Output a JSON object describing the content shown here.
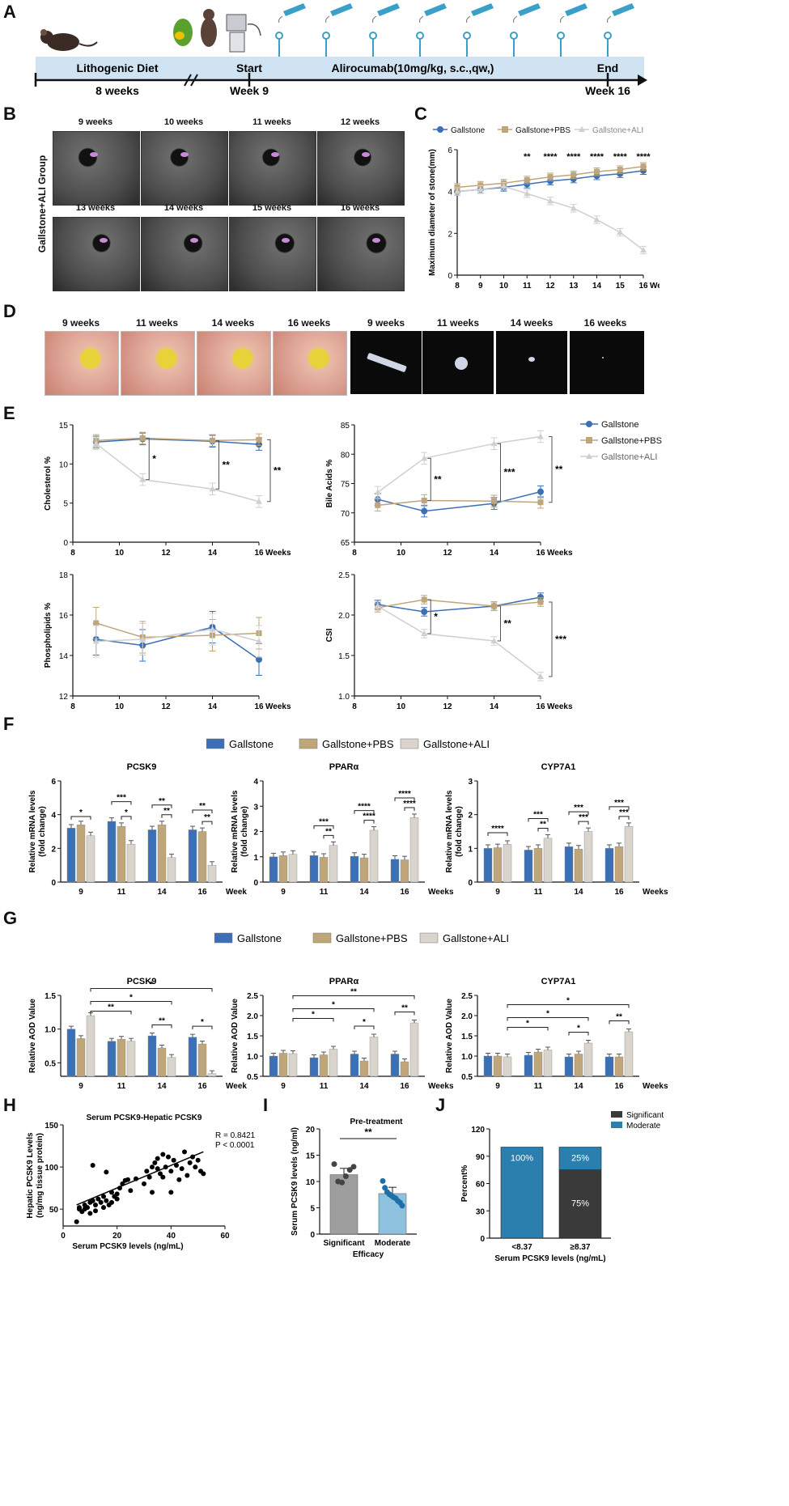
{
  "panel_labels": {
    "a": "A",
    "b": "B",
    "c": "C",
    "d": "D",
    "e": "E",
    "f": "F",
    "g": "G",
    "h": "H",
    "i": "I",
    "j": "J"
  },
  "timeline": {
    "lithogenic": "Lithogenic Diet",
    "duration": "8 weeks",
    "start": "Start",
    "start_week": "Week 9",
    "treatment": "Alirocumab(10mg/kg, s.c.,qw,)",
    "end": "End",
    "end_week": "Week 16"
  },
  "ultrasound": {
    "group_label": "Gallstone+ALI Group",
    "weeks": [
      "9 weeks",
      "10 weeks",
      "11 weeks",
      "12 weeks",
      "13 weeks",
      "14 weeks",
      "15 weeks",
      "16 weeks"
    ]
  },
  "legend3": [
    "Gallstone",
    "Gallstone+PBS",
    "Gallstone+ALI"
  ],
  "colors": {
    "gallstone": "#3b6fb6",
    "pbs": "#bfa67a",
    "ali": "#d9d4cc",
    "ali_line": "#cfcfcf",
    "significant": "#3a3a3a",
    "moderate": "#2a7fae",
    "bar_i_sig": "#9e9e9e",
    "bar_i_mod": "#8ec1de"
  },
  "photos": {
    "gross": [
      "9 weeks",
      "11 weeks",
      "14 weeks",
      "16 weeks"
    ],
    "stones": [
      "9 weeks",
      "11 weeks",
      "14 weeks",
      "16 weeks"
    ]
  },
  "chart_data": [
    {
      "id": "C",
      "type": "line",
      "x": [
        8,
        9,
        10,
        11,
        12,
        13,
        14,
        15,
        16
      ],
      "xlabel": "Weeks",
      "ylabel": "Maximum diameter of stone(mm)",
      "ylim": [
        0,
        6
      ],
      "yticks": [
        "0",
        "2",
        "4",
        "6"
      ],
      "xticks": [
        "8",
        "9",
        "10",
        "11",
        "12",
        "13",
        "14",
        "15",
        "16"
      ],
      "series": [
        {
          "name": "Gallstone",
          "values": [
            4.0,
            4.1,
            4.2,
            4.35,
            4.5,
            4.6,
            4.75,
            4.85,
            5.0
          ]
        },
        {
          "name": "Gallstone+PBS",
          "values": [
            4.2,
            4.3,
            4.4,
            4.55,
            4.7,
            4.8,
            4.95,
            5.05,
            5.2
          ]
        },
        {
          "name": "Gallstone+ALI",
          "values": [
            4.0,
            4.1,
            4.25,
            3.9,
            3.55,
            3.2,
            2.65,
            2.05,
            1.2
          ]
        }
      ],
      "sig": [
        {
          "x": 11,
          "t": "**"
        },
        {
          "x": 12,
          "t": "****"
        },
        {
          "x": 13,
          "t": "****"
        },
        {
          "x": 14,
          "t": "****"
        },
        {
          "x": 15,
          "t": "****"
        },
        {
          "x": 16,
          "t": "****"
        }
      ]
    },
    {
      "id": "E1",
      "type": "line",
      "x": [
        9,
        11,
        14,
        16
      ],
      "xlabel": "Weeks",
      "ylabel": "Cholesterol %",
      "ylim": [
        0,
        15
      ],
      "yticks": [
        "0",
        "5",
        "10",
        "15"
      ],
      "xticks": [
        "8",
        "10",
        "12",
        "14",
        "16"
      ],
      "series": [
        {
          "name": "Gallstone",
          "values": [
            12.8,
            13.2,
            12.9,
            12.5
          ]
        },
        {
          "name": "Gallstone+PBS",
          "values": [
            13.0,
            13.3,
            13.0,
            13.1
          ]
        },
        {
          "name": "Gallstone+ALI",
          "values": [
            12.6,
            8.0,
            6.8,
            5.2
          ]
        }
      ],
      "sig": [
        "*",
        "**",
        "**"
      ]
    },
    {
      "id": "E2",
      "type": "line",
      "x": [
        9,
        11,
        14,
        16
      ],
      "xlabel": "Weeks",
      "ylabel": "Bile Acids %",
      "ylim": [
        65,
        85
      ],
      "yticks": [
        "65",
        "70",
        "75",
        "80",
        "85"
      ],
      "xticks": [
        "8",
        "10",
        "12",
        "14",
        "16"
      ],
      "series": [
        {
          "name": "Gallstone",
          "values": [
            72.3,
            70.3,
            71.6,
            73.6
          ]
        },
        {
          "name": "Gallstone+PBS",
          "values": [
            71.3,
            72.1,
            72.0,
            71.8
          ]
        },
        {
          "name": "Gallstone+ALI",
          "values": [
            73.5,
            79.3,
            81.8,
            83.0
          ]
        }
      ],
      "sig": [
        "**",
        "***",
        "**"
      ]
    },
    {
      "id": "E3",
      "type": "line",
      "x": [
        9,
        11,
        14,
        16
      ],
      "xlabel": "Weeks",
      "ylabel": "Phospholipids %",
      "ylim": [
        12,
        18
      ],
      "yticks": [
        "12",
        "14",
        "16",
        "18"
      ],
      "xticks": [
        "8",
        "10",
        "12",
        "14",
        "16"
      ],
      "series": [
        {
          "name": "Gallstone",
          "values": [
            14.8,
            14.5,
            15.4,
            13.8
          ]
        },
        {
          "name": "Gallstone+PBS",
          "values": [
            15.6,
            14.9,
            15.0,
            15.1
          ]
        },
        {
          "name": "Gallstone+ALI",
          "values": [
            14.7,
            14.8,
            15.3,
            14.7
          ]
        }
      ]
    },
    {
      "id": "E4",
      "type": "line",
      "x": [
        9,
        11,
        14,
        16
      ],
      "xlabel": "Weeks",
      "ylabel": "CSI",
      "ylim": [
        1.0,
        2.5
      ],
      "yticks": [
        "1.0",
        "1.5",
        "2.0",
        "2.5"
      ],
      "xticks": [
        "8",
        "10",
        "12",
        "14",
        "16"
      ],
      "series": [
        {
          "name": "Gallstone",
          "values": [
            2.13,
            2.04,
            2.11,
            2.22
          ]
        },
        {
          "name": "Gallstone+PBS",
          "values": [
            2.09,
            2.19,
            2.11,
            2.16
          ]
        },
        {
          "name": "Gallstone+ALI",
          "values": [
            2.11,
            1.77,
            1.68,
            1.24
          ]
        }
      ],
      "sig": [
        "*",
        "**",
        "***"
      ]
    },
    {
      "id": "F1",
      "type": "bar",
      "title": "PCSK9",
      "ylabel": "Relative mRNA levels (fold change)",
      "ylim": [
        0,
        6
      ],
      "yticks": [
        "0",
        "2",
        "4",
        "6"
      ],
      "categories": [
        "9",
        "11",
        "14",
        "16"
      ],
      "xlabel": "Weeks",
      "series": [
        {
          "name": "Gallstone",
          "values": [
            3.2,
            3.6,
            3.1,
            3.1
          ]
        },
        {
          "name": "Gallstone+PBS",
          "values": [
            3.4,
            3.3,
            3.4,
            3.0
          ]
        },
        {
          "name": "Gallstone+ALI",
          "values": [
            2.75,
            2.25,
            1.45,
            1.0
          ]
        }
      ],
      "sig": [
        [
          "*"
        ],
        [
          "***",
          "*"
        ],
        [
          "**",
          "**"
        ],
        [
          "**",
          "**"
        ]
      ]
    },
    {
      "id": "F2",
      "type": "bar",
      "title": "PPARα",
      "ylabel": "Relative mRNA levels (fold change)",
      "ylim": [
        0,
        4
      ],
      "yticks": [
        "0",
        "1",
        "2",
        "3",
        "4"
      ],
      "categories": [
        "9",
        "11",
        "14",
        "16"
      ],
      "xlabel": "Weeks",
      "series": [
        {
          "name": "Gallstone",
          "values": [
            1.0,
            1.05,
            1.02,
            0.9
          ]
        },
        {
          "name": "Gallstone+PBS",
          "values": [
            1.05,
            0.98,
            0.96,
            0.88
          ]
        },
        {
          "name": "Gallstone+ALI",
          "values": [
            1.1,
            1.45,
            2.05,
            2.55
          ]
        }
      ],
      "sig": [
        [],
        [
          "***",
          "**"
        ],
        [
          "****",
          "****"
        ],
        [
          "****",
          "****"
        ]
      ]
    },
    {
      "id": "F3",
      "type": "bar",
      "title": "CYP7A1",
      "ylabel": "Relative mRNA levels (fold change)",
      "ylim": [
        0,
        3
      ],
      "yticks": [
        "0",
        "1",
        "2",
        "3"
      ],
      "categories": [
        "9",
        "11",
        "14",
        "16"
      ],
      "xlabel": "Weeks",
      "series": [
        {
          "name": "Gallstone",
          "values": [
            1.0,
            0.95,
            1.05,
            1.0
          ]
        },
        {
          "name": "Gallstone+PBS",
          "values": [
            1.02,
            1.0,
            0.98,
            1.05
          ]
        },
        {
          "name": "Gallstone+ALI",
          "values": [
            1.12,
            1.3,
            1.5,
            1.65
          ]
        }
      ],
      "sig": [
        [
          "****"
        ],
        [
          "***",
          "**"
        ],
        [
          "***",
          "***"
        ],
        [
          "***",
          "***"
        ]
      ]
    },
    {
      "id": "G1",
      "type": "bar",
      "title": "PCSK9",
      "ylabel": "Relative AOD Value",
      "ylim": [
        0.3,
        1.5
      ],
      "yticks": [
        "0.5",
        "1.0",
        "1.5"
      ],
      "categories": [
        "9",
        "11",
        "14",
        "16"
      ],
      "xlabel": "Weeks",
      "series": [
        {
          "name": "Gallstone",
          "values": [
            1.0,
            0.82,
            0.9,
            0.88
          ]
        },
        {
          "name": "Gallstone+PBS",
          "values": [
            0.86,
            0.85,
            0.72,
            0.78
          ]
        },
        {
          "name": "Gallstone+ALI",
          "values": [
            1.2,
            0.82,
            0.58,
            0.34
          ]
        }
      ],
      "sig_labels": [
        "*",
        "*",
        "**",
        "**",
        "*",
        "*"
      ]
    },
    {
      "id": "G2",
      "type": "bar",
      "title": "PPARα",
      "ylabel": "Relative AOD Value",
      "ylim": [
        0.5,
        2.5
      ],
      "yticks": [
        "0.5",
        "1.0",
        "1.5",
        "2.0",
        "2.5"
      ],
      "categories": [
        "9",
        "11",
        "14",
        "16"
      ],
      "xlabel": "Weeks",
      "series": [
        {
          "name": "Gallstone",
          "values": [
            1.0,
            0.96,
            1.05,
            1.05
          ]
        },
        {
          "name": "Gallstone+PBS",
          "values": [
            1.07,
            1.03,
            0.88,
            0.86
          ]
        },
        {
          "name": "Gallstone+ALI",
          "values": [
            1.06,
            1.17,
            1.47,
            1.82
          ]
        }
      ],
      "sig_labels": [
        "**",
        "*",
        "*",
        "*",
        "**",
        "**"
      ]
    },
    {
      "id": "G3",
      "type": "bar",
      "title": "CYP7A1",
      "ylabel": "Relative AOD Value",
      "ylim": [
        0.5,
        2.5
      ],
      "yticks": [
        "0.5",
        "1.0",
        "1.5",
        "2.0",
        "2.5"
      ],
      "categories": [
        "9",
        "11",
        "14",
        "16"
      ],
      "xlabel": "Weeks",
      "series": [
        {
          "name": "Gallstone",
          "values": [
            1.0,
            1.02,
            0.98,
            0.98
          ]
        },
        {
          "name": "Gallstone+PBS",
          "values": [
            1.0,
            1.1,
            1.05,
            0.98
          ]
        },
        {
          "name": "Gallstone+ALI",
          "values": [
            0.98,
            1.15,
            1.32,
            1.6
          ]
        }
      ],
      "sig_labels": [
        "*",
        "*",
        "*",
        "*",
        "**",
        "**"
      ]
    },
    {
      "id": "H",
      "type": "scatter",
      "title": "Serum PCSK9-Hepatic PCSK9",
      "xlabel": "Serum  PCSK9 levels (ng/mL)",
      "ylabel": "Hepatic PCSK9 Levels (ng/mg tissue protein)",
      "xlim": [
        0,
        60
      ],
      "ylim": [
        30,
        150
      ],
      "xticks": [
        "0",
        "20",
        "40",
        "60"
      ],
      "yticks": [
        "50",
        "100",
        "150"
      ],
      "annotation": [
        "R = 0.8421",
        "P < 0.0001"
      ],
      "fit": [
        [
          5,
          55
        ],
        [
          52,
          118
        ]
      ],
      "points": [
        [
          5,
          35
        ],
        [
          6,
          52
        ],
        [
          7,
          47
        ],
        [
          8,
          50
        ],
        [
          8,
          55
        ],
        [
          9,
          52
        ],
        [
          10,
          58
        ],
        [
          10,
          45
        ],
        [
          11,
          60
        ],
        [
          12,
          55
        ],
        [
          12,
          48
        ],
        [
          13,
          62
        ],
        [
          14,
          58
        ],
        [
          15,
          52
        ],
        [
          15,
          65
        ],
        [
          16,
          60
        ],
        [
          17,
          55
        ],
        [
          18,
          58
        ],
        [
          18,
          70
        ],
        [
          19,
          65
        ],
        [
          20,
          62
        ],
        [
          20,
          68
        ],
        [
          21,
          75
        ],
        [
          22,
          80
        ],
        [
          23,
          84
        ],
        [
          24,
          85
        ],
        [
          25,
          72
        ],
        [
          27,
          86
        ],
        [
          30,
          80
        ],
        [
          31,
          95
        ],
        [
          32,
          88
        ],
        [
          33,
          100
        ],
        [
          33,
          70
        ],
        [
          34,
          105
        ],
        [
          35,
          98
        ],
        [
          35,
          110
        ],
        [
          36,
          92
        ],
        [
          37,
          115
        ],
        [
          37,
          88
        ],
        [
          38,
          100
        ],
        [
          39,
          112
        ],
        [
          40,
          95
        ],
        [
          40,
          70
        ],
        [
          41,
          108
        ],
        [
          42,
          102
        ],
        [
          43,
          85
        ],
        [
          44,
          98
        ],
        [
          45,
          118
        ],
        [
          46,
          90
        ],
        [
          47,
          105
        ],
        [
          48,
          112
        ],
        [
          49,
          100
        ],
        [
          50,
          108
        ],
        [
          51,
          95
        ],
        [
          52,
          92
        ],
        [
          11,
          102
        ],
        [
          16,
          94
        ],
        [
          6,
          50
        ]
      ]
    },
    {
      "id": "I",
      "type": "bar",
      "title": "Pre-treatment",
      "ylabel": "Serum PCSK9 levels  (ng/ml)",
      "xlabel": "Efficacy",
      "ylim": [
        0,
        20
      ],
      "yticks": [
        "0",
        "5",
        "10",
        "15",
        "20"
      ],
      "categories": [
        "Significant",
        "Moderate"
      ],
      "values": [
        11.3,
        7.7
      ],
      "sig": "**",
      "points": [
        [
          13.3,
          10.0,
          9.8,
          11.0,
          12.2,
          12.8
        ],
        [
          10.1,
          8.8,
          8.0,
          7.6,
          7.3,
          7.0,
          6.8,
          6.3,
          6.0,
          5.4
        ]
      ]
    },
    {
      "id": "J",
      "type": "bar",
      "ylabel": "Percent%",
      "xlabel": "Serum PCSK9 levels (ng/mL)",
      "ylim": [
        0,
        120
      ],
      "yticks": [
        "0",
        "30",
        "60",
        "90",
        "120"
      ],
      "categories": [
        "<8.37",
        "≥8.37"
      ],
      "series": [
        {
          "name": "Significant",
          "values": [
            0,
            75
          ]
        },
        {
          "name": "Moderate",
          "values": [
            100,
            25
          ]
        }
      ],
      "labels": [
        [
          "100%"
        ],
        [
          "25%",
          "75%"
        ]
      ]
    }
  ]
}
